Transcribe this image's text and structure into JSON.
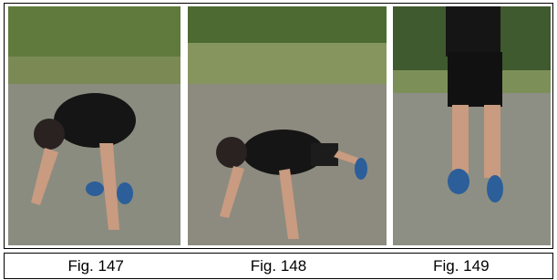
{
  "figures": [
    {
      "caption": "Fig. 147"
    },
    {
      "caption": "Fig. 148"
    },
    {
      "caption": "Fig. 149"
    }
  ]
}
